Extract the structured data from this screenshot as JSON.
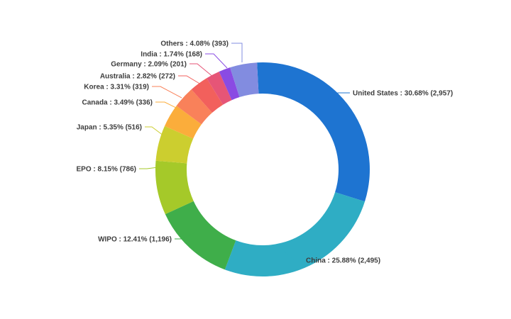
{
  "chart_data": {
    "type": "pie",
    "variant": "donut",
    "title": "",
    "legend_position": "none",
    "background": "#ffffff",
    "label_color": "#3d3d3d",
    "label_format": "{name} : {pct} ({count})",
    "slices": [
      {
        "name": "United States",
        "pct": "30.68%",
        "count": "2,957",
        "value": 2957,
        "percent": 30.68,
        "color": "#1e74d1"
      },
      {
        "name": "China",
        "pct": "25.88%",
        "count": "2,495",
        "value": 2495,
        "percent": 25.88,
        "color": "#2fadc4"
      },
      {
        "name": "WIPO",
        "pct": "12.41%",
        "count": "1,196",
        "value": 1196,
        "percent": 12.41,
        "color": "#3fae4a"
      },
      {
        "name": "EPO",
        "pct": "8.15%",
        "count": "786",
        "value": 786,
        "percent": 8.15,
        "color": "#a5c929"
      },
      {
        "name": "Japan",
        "pct": "5.35%",
        "count": "516",
        "value": 516,
        "percent": 5.35,
        "color": "#ccce2f"
      },
      {
        "name": "Canada",
        "pct": "3.49%",
        "count": "336",
        "value": 336,
        "percent": 3.49,
        "color": "#fbad3b"
      },
      {
        "name": "Korea",
        "pct": "3.31%",
        "count": "319",
        "value": 319,
        "percent": 3.31,
        "color": "#f9815a"
      },
      {
        "name": "Australia",
        "pct": "2.82%",
        "count": "272",
        "value": 272,
        "percent": 2.82,
        "color": "#f2605c"
      },
      {
        "name": "Germany",
        "pct": "2.09%",
        "count": "201",
        "value": 201,
        "percent": 2.09,
        "color": "#e65577"
      },
      {
        "name": "India",
        "pct": "1.74%",
        "count": "168",
        "value": 168,
        "percent": 1.74,
        "color": "#8a4be3"
      },
      {
        "name": "Others",
        "pct": "4.08%",
        "count": "393",
        "value": 393,
        "percent": 4.08,
        "color": "#828ce0"
      }
    ]
  }
}
